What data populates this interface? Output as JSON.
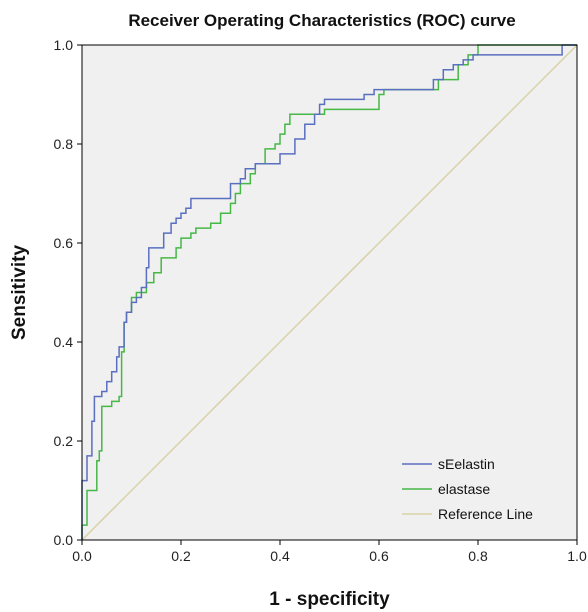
{
  "chart_data": {
    "type": "line",
    "title": "Receiver Operating Characteristics (ROC) curve",
    "xlabel": "1 - specificity",
    "ylabel": "Sensitivity",
    "xlim": [
      0.0,
      1.0
    ],
    "ylim": [
      0.0,
      1.0
    ],
    "x_ticks": [
      "0.0",
      "0.2",
      "0.4",
      "0.6",
      "0.8",
      "1.0"
    ],
    "y_ticks": [
      "0.0",
      "0.2",
      "0.4",
      "0.6",
      "0.8",
      "1.0"
    ],
    "grid": false,
    "legend_position": "bottom-right",
    "plot_background": "#f0f0f0",
    "series": [
      {
        "name": "sEelastin",
        "color": "#5a6fc0",
        "points": [
          [
            0,
            0
          ],
          [
            0,
            0.12
          ],
          [
            0.01,
            0.12
          ],
          [
            0.01,
            0.17
          ],
          [
            0.02,
            0.17
          ],
          [
            0.02,
            0.24
          ],
          [
            0.025,
            0.24
          ],
          [
            0.025,
            0.29
          ],
          [
            0.04,
            0.29
          ],
          [
            0.04,
            0.3
          ],
          [
            0.05,
            0.3
          ],
          [
            0.05,
            0.32
          ],
          [
            0.06,
            0.32
          ],
          [
            0.06,
            0.34
          ],
          [
            0.07,
            0.34
          ],
          [
            0.07,
            0.37
          ],
          [
            0.075,
            0.37
          ],
          [
            0.075,
            0.39
          ],
          [
            0.085,
            0.39
          ],
          [
            0.085,
            0.44
          ],
          [
            0.09,
            0.44
          ],
          [
            0.09,
            0.46
          ],
          [
            0.1,
            0.46
          ],
          [
            0.1,
            0.48
          ],
          [
            0.11,
            0.48
          ],
          [
            0.11,
            0.49
          ],
          [
            0.12,
            0.49
          ],
          [
            0.12,
            0.51
          ],
          [
            0.13,
            0.51
          ],
          [
            0.13,
            0.55
          ],
          [
            0.135,
            0.55
          ],
          [
            0.135,
            0.59
          ],
          [
            0.165,
            0.59
          ],
          [
            0.165,
            0.62
          ],
          [
            0.18,
            0.62
          ],
          [
            0.18,
            0.64
          ],
          [
            0.19,
            0.64
          ],
          [
            0.19,
            0.65
          ],
          [
            0.2,
            0.65
          ],
          [
            0.2,
            0.66
          ],
          [
            0.21,
            0.66
          ],
          [
            0.21,
            0.67
          ],
          [
            0.22,
            0.67
          ],
          [
            0.22,
            0.69
          ],
          [
            0.3,
            0.69
          ],
          [
            0.3,
            0.72
          ],
          [
            0.32,
            0.72
          ],
          [
            0.32,
            0.73
          ],
          [
            0.33,
            0.73
          ],
          [
            0.33,
            0.75
          ],
          [
            0.35,
            0.75
          ],
          [
            0.35,
            0.76
          ],
          [
            0.4,
            0.76
          ],
          [
            0.4,
            0.78
          ],
          [
            0.43,
            0.78
          ],
          [
            0.43,
            0.81
          ],
          [
            0.45,
            0.81
          ],
          [
            0.45,
            0.84
          ],
          [
            0.47,
            0.84
          ],
          [
            0.47,
            0.86
          ],
          [
            0.48,
            0.86
          ],
          [
            0.48,
            0.88
          ],
          [
            0.49,
            0.88
          ],
          [
            0.49,
            0.89
          ],
          [
            0.57,
            0.89
          ],
          [
            0.57,
            0.9
          ],
          [
            0.59,
            0.9
          ],
          [
            0.59,
            0.91
          ],
          [
            0.71,
            0.91
          ],
          [
            0.71,
            0.93
          ],
          [
            0.73,
            0.93
          ],
          [
            0.73,
            0.95
          ],
          [
            0.75,
            0.95
          ],
          [
            0.75,
            0.96
          ],
          [
            0.77,
            0.96
          ],
          [
            0.77,
            0.97
          ],
          [
            0.79,
            0.97
          ],
          [
            0.79,
            0.98
          ],
          [
            0.97,
            0.98
          ],
          [
            0.97,
            1.0
          ],
          [
            1.0,
            1.0
          ]
        ]
      },
      {
        "name": "elastase",
        "color": "#46b846",
        "points": [
          [
            0,
            0
          ],
          [
            0,
            0.03
          ],
          [
            0.01,
            0.03
          ],
          [
            0.01,
            0.1
          ],
          [
            0.03,
            0.1
          ],
          [
            0.03,
            0.16
          ],
          [
            0.035,
            0.16
          ],
          [
            0.035,
            0.18
          ],
          [
            0.04,
            0.18
          ],
          [
            0.04,
            0.27
          ],
          [
            0.06,
            0.27
          ],
          [
            0.06,
            0.28
          ],
          [
            0.075,
            0.28
          ],
          [
            0.075,
            0.29
          ],
          [
            0.08,
            0.29
          ],
          [
            0.08,
            0.38
          ],
          [
            0.085,
            0.38
          ],
          [
            0.085,
            0.44
          ],
          [
            0.09,
            0.44
          ],
          [
            0.09,
            0.46
          ],
          [
            0.1,
            0.46
          ],
          [
            0.1,
            0.49
          ],
          [
            0.11,
            0.49
          ],
          [
            0.11,
            0.5
          ],
          [
            0.13,
            0.5
          ],
          [
            0.13,
            0.52
          ],
          [
            0.145,
            0.52
          ],
          [
            0.145,
            0.54
          ],
          [
            0.16,
            0.54
          ],
          [
            0.16,
            0.57
          ],
          [
            0.19,
            0.57
          ],
          [
            0.19,
            0.59
          ],
          [
            0.2,
            0.59
          ],
          [
            0.2,
            0.61
          ],
          [
            0.22,
            0.61
          ],
          [
            0.22,
            0.62
          ],
          [
            0.23,
            0.62
          ],
          [
            0.23,
            0.63
          ],
          [
            0.26,
            0.63
          ],
          [
            0.26,
            0.64
          ],
          [
            0.28,
            0.64
          ],
          [
            0.28,
            0.66
          ],
          [
            0.3,
            0.66
          ],
          [
            0.3,
            0.68
          ],
          [
            0.31,
            0.68
          ],
          [
            0.31,
            0.7
          ],
          [
            0.32,
            0.7
          ],
          [
            0.32,
            0.72
          ],
          [
            0.34,
            0.72
          ],
          [
            0.34,
            0.74
          ],
          [
            0.35,
            0.74
          ],
          [
            0.35,
            0.76
          ],
          [
            0.37,
            0.76
          ],
          [
            0.37,
            0.79
          ],
          [
            0.39,
            0.79
          ],
          [
            0.39,
            0.8
          ],
          [
            0.4,
            0.8
          ],
          [
            0.4,
            0.82
          ],
          [
            0.41,
            0.82
          ],
          [
            0.41,
            0.84
          ],
          [
            0.42,
            0.84
          ],
          [
            0.42,
            0.86
          ],
          [
            0.49,
            0.86
          ],
          [
            0.49,
            0.87
          ],
          [
            0.6,
            0.87
          ],
          [
            0.6,
            0.9
          ],
          [
            0.61,
            0.9
          ],
          [
            0.61,
            0.91
          ],
          [
            0.72,
            0.91
          ],
          [
            0.72,
            0.93
          ],
          [
            0.76,
            0.93
          ],
          [
            0.76,
            0.96
          ],
          [
            0.78,
            0.96
          ],
          [
            0.78,
            0.98
          ],
          [
            0.8,
            0.98
          ],
          [
            0.8,
            1.0
          ],
          [
            1.0,
            1.0
          ]
        ]
      },
      {
        "name": "Reference Line",
        "color": "#d8d1a6",
        "points": [
          [
            0,
            0
          ],
          [
            1,
            1
          ]
        ]
      }
    ]
  }
}
